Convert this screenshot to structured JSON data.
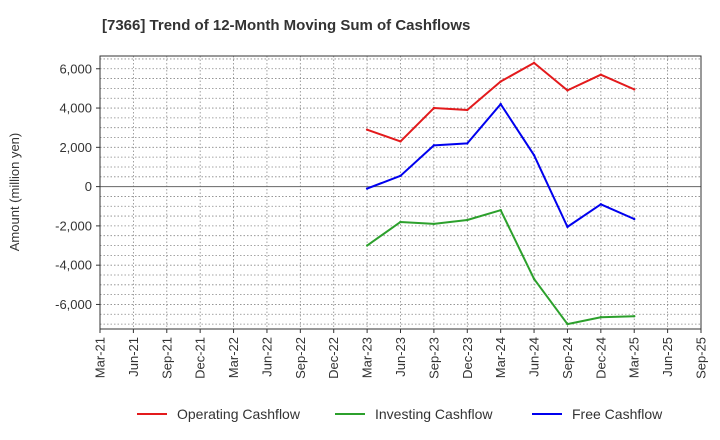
{
  "chart_data": {
    "type": "line",
    "title": "[7366]  Trend of 12-Month Moving Sum of Cashflows",
    "xlabel": "",
    "ylabel": "Amount (million yen)",
    "categories": [
      "Mar-21",
      "Jun-21",
      "Sep-21",
      "Dec-21",
      "Mar-22",
      "Jun-22",
      "Sep-22",
      "Dec-22",
      "Mar-23",
      "Jun-23",
      "Sep-23",
      "Dec-23",
      "Mar-24",
      "Jun-24",
      "Sep-24",
      "Dec-24",
      "Mar-25",
      "Jun-25",
      "Sep-25"
    ],
    "yticks": [
      6000,
      4000,
      2000,
      0,
      -2000,
      -4000,
      -6000
    ],
    "ytick_labels": [
      "6,000",
      "4,000",
      "2,000",
      "0",
      "-2,000",
      "-4,000",
      "-6,000"
    ],
    "ylim": [
      -7250,
      6650
    ],
    "grid": true,
    "legend_position": "bottom",
    "series": [
      {
        "name": "Operating Cashflow",
        "color": "#e31a1c",
        "values": [
          null,
          null,
          null,
          null,
          null,
          null,
          null,
          null,
          2900,
          2300,
          4000,
          3900,
          5350,
          6300,
          4900,
          5700,
          4950,
          null,
          null
        ]
      },
      {
        "name": "Investing Cashflow",
        "color": "#2ca02c",
        "values": [
          null,
          null,
          null,
          null,
          null,
          null,
          null,
          null,
          -3000,
          -1800,
          -1900,
          -1700,
          -1200,
          -4700,
          -7000,
          -6650,
          -6600,
          null,
          null
        ]
      },
      {
        "name": "Free Cashflow",
        "color": "#0000ee",
        "values": [
          null,
          null,
          null,
          null,
          null,
          null,
          null,
          null,
          -100,
          550,
          2100,
          2200,
          4200,
          1600,
          -2050,
          -900,
          -1650,
          null,
          null
        ]
      }
    ]
  }
}
